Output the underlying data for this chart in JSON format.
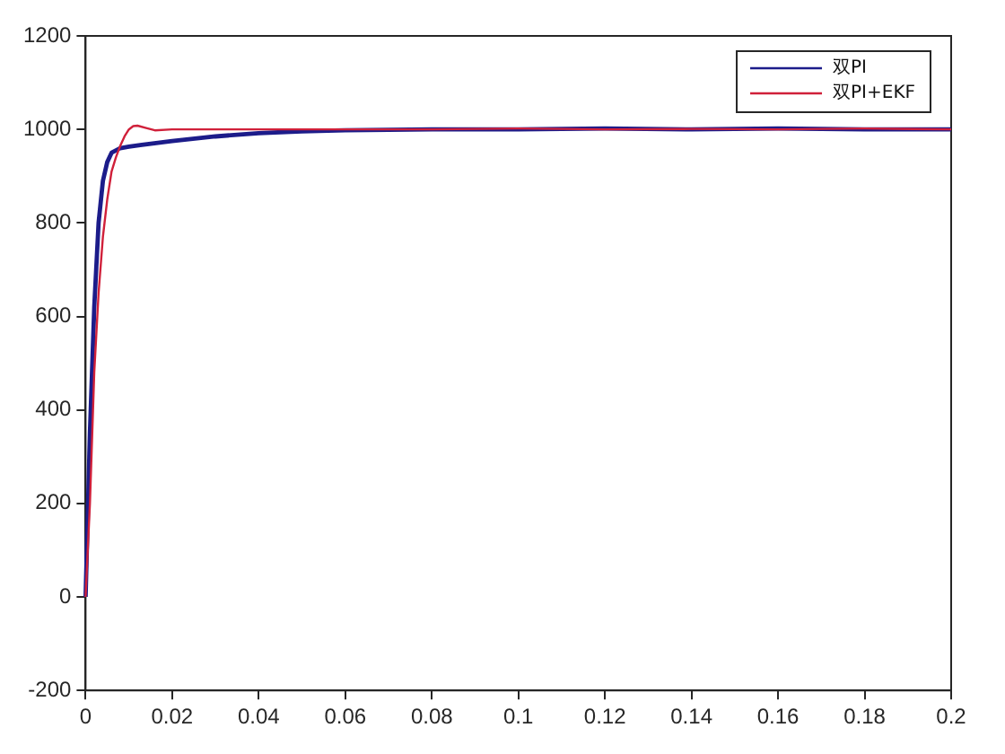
{
  "chart_data": {
    "type": "line",
    "xlim": [
      0,
      0.2
    ],
    "xticks": [
      0,
      0.02,
      0.04,
      0.06,
      0.08,
      0.1,
      0.12,
      0.14,
      0.16,
      0.18,
      0.2
    ],
    "ylim": [
      -200,
      1200
    ],
    "yticks": [
      -200,
      0,
      200,
      400,
      600,
      800,
      1000,
      1200
    ],
    "legend": "top right",
    "grid": false,
    "marker": "none",
    "line_style": "solid",
    "series": [
      {
        "name": "双PI",
        "color": "#1c1c8a",
        "x": [
          0,
          0.001,
          0.002,
          0.003,
          0.004,
          0.005,
          0.006,
          0.008,
          0.01,
          0.013,
          0.02,
          0.03,
          0.04,
          0.05,
          0.06,
          0.08,
          0.1,
          0.12,
          0.14,
          0.16,
          0.18,
          0.2
        ],
        "values": [
          0,
          350,
          620,
          800,
          890,
          930,
          950,
          960,
          963,
          967,
          975,
          985,
          992,
          996,
          998,
          1000,
          1000,
          1002,
          1000,
          1002,
          1000,
          1000
        ]
      },
      {
        "name": "双PI+EKF",
        "color": "#d0203a",
        "x": [
          0,
          0.001,
          0.002,
          0.003,
          0.004,
          0.005,
          0.006,
          0.007,
          0.008,
          0.009,
          0.01,
          0.011,
          0.012,
          0.014,
          0.016,
          0.02,
          0.03,
          0.05,
          0.08,
          0.1,
          0.12,
          0.14,
          0.16,
          0.18,
          0.2
        ],
        "values": [
          0,
          200,
          480,
          650,
          770,
          850,
          910,
          940,
          965,
          985,
          1000,
          1007,
          1008,
          1003,
          998,
          1000,
          1000,
          1000,
          1000,
          1002,
          1000,
          1001,
          1000,
          1002,
          1000
        ]
      }
    ]
  }
}
